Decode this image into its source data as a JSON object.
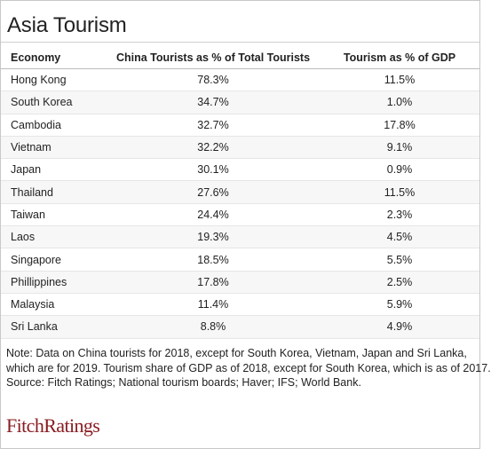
{
  "title": "Asia Tourism",
  "table": {
    "headers": [
      "Economy",
      "China Tourists as % of Total Tourists",
      "Tourism as % of GDP"
    ],
    "rows": [
      [
        "Hong Kong",
        "78.3%",
        "11.5%"
      ],
      [
        "South Korea",
        "34.7%",
        "1.0%"
      ],
      [
        "Cambodia",
        "32.7%",
        "17.8%"
      ],
      [
        "Vietnam",
        "32.2%",
        "9.1%"
      ],
      [
        "Japan",
        "30.1%",
        "0.9%"
      ],
      [
        "Thailand",
        "27.6%",
        "11.5%"
      ],
      [
        "Taiwan",
        "24.4%",
        "2.3%"
      ],
      [
        "Laos",
        "19.3%",
        "4.5%"
      ],
      [
        "Singapore",
        "18.5%",
        "5.5%"
      ],
      [
        "Phillippines",
        "17.8%",
        "2.5%"
      ],
      [
        "Malaysia",
        "11.4%",
        "5.9%"
      ],
      [
        "Sri Lanka",
        "8.8%",
        "4.9%"
      ]
    ]
  },
  "notes": {
    "line1": "Note: Data on China tourists for 2018, except for South Korea, Vietnam, Japan and Sri Lanka,",
    "line2": "which are for 2019. Tourism share of GDP as of 2018, except for South Korea, which is as of 2017.",
    "line3": "Source: Fitch Ratings; National tourism boards; Haver; IFS; World Bank."
  },
  "logo": {
    "text": "FitchRatings",
    "color": "#8a1c22"
  }
}
